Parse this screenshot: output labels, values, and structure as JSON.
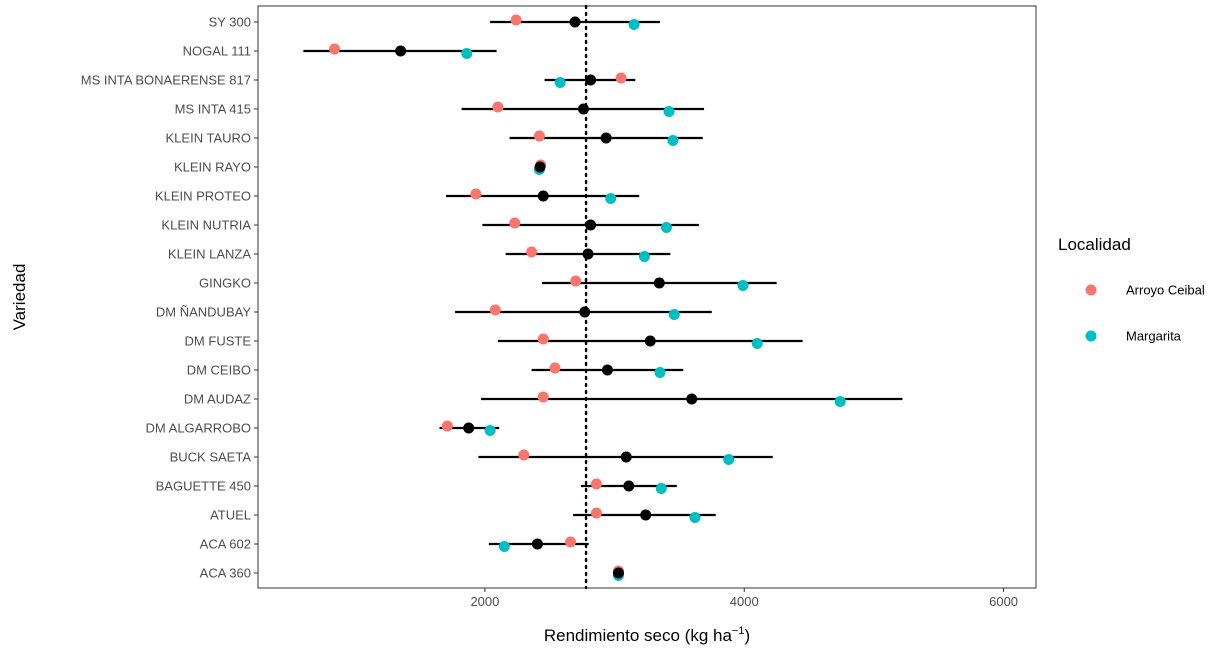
{
  "chart_data": {
    "type": "scatter",
    "orientation": "horizontal",
    "xlabel": "Rendimiento seco (kg ha",
    "xlabel_superscript": "−1",
    "xlabel_suffix": ")",
    "ylabel": "Variedad",
    "xlim": [
      250,
      6250
    ],
    "x_ticks": [
      2000,
      4000,
      6000
    ],
    "x_tick_labels": [
      "2000",
      "4000",
      "6000"
    ],
    "grid": false,
    "reference_line": {
      "x": 2780,
      "style": "dotted"
    },
    "categories": [
      "SY 300",
      "NOGAL 111",
      "MS INTA BONAERENSE 817",
      "MS INTA 415",
      "KLEIN TAURO",
      "KLEIN RAYO",
      "KLEIN PROTEO",
      "KLEIN NUTRIA",
      "KLEIN LANZA",
      "GINGKO",
      "DM ÑANDUBAY",
      "DM FUSTE",
      "DM CEIBO",
      "DM AUDAZ",
      "DM ALGARROBO",
      "BUCK SAETA",
      "BAGUETTE 450",
      "ATUEL",
      "ACA 602",
      "ACA 360"
    ],
    "series": [
      {
        "name": "Arroyo Ceibal",
        "color": "#F8766D",
        "values": [
          2240,
          840,
          3050,
          2100,
          2420,
          2430,
          1930,
          2230,
          2360,
          2700,
          2080,
          2450,
          2540,
          2450,
          1710,
          2300,
          2860,
          2860,
          2660,
          3030
        ]
      },
      {
        "name": "Margarita",
        "color": "#00BFC4",
        "values": [
          3150,
          1860,
          2580,
          3420,
          3450,
          2420,
          2970,
          3400,
          3230,
          3990,
          3460,
          4100,
          3350,
          4740,
          2040,
          3880,
          3360,
          3620,
          2150,
          3030
        ]
      }
    ],
    "means": {
      "color": "#000000",
      "values": [
        2695,
        1350,
        2815,
        2760,
        2935,
        2425,
        2450,
        2815,
        2795,
        3345,
        2770,
        3275,
        2945,
        3595,
        1875,
        3090,
        3110,
        3240,
        2405,
        3030
      ]
    },
    "intervals": [
      [
        2040,
        3350
      ],
      [
        600,
        2090
      ],
      [
        2460,
        3160
      ],
      [
        1820,
        3690
      ],
      [
        2190,
        3680
      ],
      [
        2410,
        2440
      ],
      [
        1700,
        3190
      ],
      [
        1980,
        3650
      ],
      [
        2160,
        3430
      ],
      [
        2440,
        4250
      ],
      [
        1770,
        3750
      ],
      [
        2100,
        4450
      ],
      [
        2360,
        3530
      ],
      [
        1970,
        5220
      ],
      [
        1650,
        2110
      ],
      [
        1950,
        4220
      ],
      [
        2740,
        3480
      ],
      [
        2680,
        3780
      ],
      [
        2030,
        2800
      ],
      [
        3030,
        3030
      ]
    ],
    "legend": {
      "title": "Localidad",
      "placement": "right",
      "items": [
        {
          "label": "Arroyo Ceibal",
          "color": "#F8766D"
        },
        {
          "label": "Margarita",
          "color": "#00BFC4"
        }
      ]
    }
  }
}
